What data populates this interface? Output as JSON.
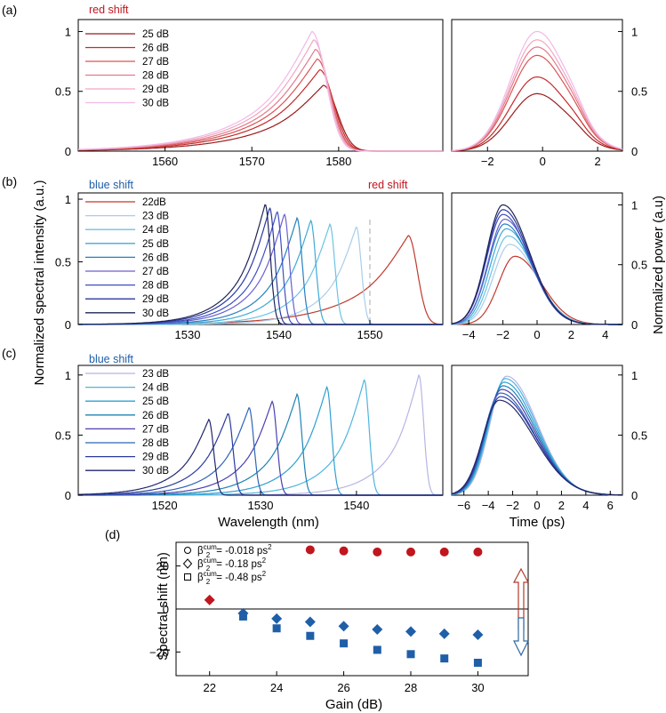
{
  "panels": {
    "a": {
      "label": "(a)",
      "annotation": "red shift",
      "spectrum": {
        "xticks": [
          1560,
          1570,
          1580
        ],
        "yticks": [
          "0",
          "0.5",
          "1"
        ],
        "legend": [
          "25 dB",
          "26 dB",
          "27 dB",
          "28 dB",
          "29 dB",
          "30 dB"
        ],
        "colors": [
          "#9b1c1c",
          "#c42a2a",
          "#d95555",
          "#e27a8c",
          "#f0a8c0",
          "#f2b8e8"
        ],
        "xlim": [
          1550,
          1592
        ],
        "ylim": [
          0,
          1.1
        ]
      },
      "time": {
        "xticks": [
          -2,
          0,
          2
        ],
        "yticks": [
          "0",
          "0.5",
          "1"
        ],
        "xlim": [
          -3.3,
          2.9
        ],
        "ylim": [
          0,
          1.1
        ]
      }
    },
    "b": {
      "label": "(b)",
      "annotation_left": "blue shift",
      "annotation_right": "red shift",
      "spectrum": {
        "xticks": [
          1530,
          1540,
          1550
        ],
        "yticks": [
          "0",
          "0.5",
          "1"
        ],
        "legend": [
          "22dB",
          "23 dB",
          "24 dB",
          "25 dB",
          "26 dB",
          "27 dB",
          "28 dB",
          "29 dB",
          "30 dB"
        ],
        "colors": [
          "#c0392b",
          "#a9cdea",
          "#6cc3e2",
          "#3fa9d8",
          "#2480bf",
          "#6a5fd1",
          "#3f4fbf",
          "#2a3a9e",
          "#1f2455"
        ],
        "xlim": [
          1518,
          1558
        ],
        "ylim": [
          0,
          1.05
        ],
        "reference_line": 1550
      },
      "time": {
        "xticks": [
          -4,
          -2,
          0,
          2,
          4
        ],
        "yticks": [
          "0",
          "0.5",
          "1"
        ],
        "xlim": [
          -5,
          5
        ],
        "ylim": [
          0,
          1.1
        ]
      }
    },
    "c": {
      "label": "(c)",
      "annotation": "blue shift",
      "spectrum": {
        "xticks": [
          1520,
          1530,
          1540
        ],
        "yticks": [
          "0",
          "0.5",
          "1"
        ],
        "legend": [
          "23 dB",
          "24 dB",
          "25 dB",
          "26 dB",
          "27 dB",
          "28 dB",
          "29 dB",
          "30 dB"
        ],
        "colors": [
          "#b5b5e6",
          "#4fb4e0",
          "#2f9fd1",
          "#1d82b4",
          "#4a3fb0",
          "#2f63b8",
          "#2a3a9e",
          "#22266a"
        ],
        "xlim": [
          1511,
          1549
        ],
        "ylim": [
          0,
          1.08
        ]
      },
      "time": {
        "xticks": [
          -6,
          -4,
          -2,
          0,
          2,
          4,
          6
        ],
        "yticks": [
          "0",
          "0.5",
          "1"
        ],
        "xlim": [
          -7,
          7
        ],
        "ylim": [
          0,
          1.08
        ]
      }
    },
    "d": {
      "label": "(d)",
      "xlabel": "Gain (dB)",
      "ylabel": "Spectral shift (nm)",
      "xticks": [
        22,
        24,
        26,
        28,
        30
      ],
      "yticks": [
        -20,
        0,
        20
      ],
      "xlim": [
        21,
        31.5
      ],
      "ylim": [
        -31,
        31
      ],
      "legend": [
        {
          "marker": "circle",
          "beta": "β",
          "sub": "2",
          "sup": "cum",
          "text": "= -0.018  ps",
          "unit_sup": "2"
        },
        {
          "marker": "diamond",
          "beta": "β",
          "sub": "2",
          "sup": "cum",
          "text": "= -0.18  ps",
          "unit_sup": "2"
        },
        {
          "marker": "square",
          "beta": "β",
          "sub": "2",
          "sup": "cum",
          "text": "= -0.48  ps",
          "unit_sup": "2"
        }
      ]
    }
  },
  "shared_labels": {
    "spectrum_xlabel": "Wavelength (nm)",
    "spectrum_ylabel": "Normalized spectral intensity (a.u.)",
    "time_xlabel": "Time (ps)",
    "time_ylabel": "Normalized power (a.u)"
  },
  "colors": {
    "red": "#c0161d",
    "blue": "#1f5fa8",
    "arrow_red": "#b23a2c",
    "arrow_blue": "#2b6aa8"
  },
  "chart_data": [
    {
      "type": "line",
      "panel": "a-spectrum",
      "xlabel": "Wavelength (nm)",
      "series": [
        {
          "name": "25 dB",
          "peak_x": 1578.2,
          "peak_y": 0.55
        },
        {
          "name": "26 dB",
          "peak_x": 1577.8,
          "peak_y": 0.68
        },
        {
          "name": "27 dB",
          "peak_x": 1577.5,
          "peak_y": 0.77
        },
        {
          "name": "28 dB",
          "peak_x": 1577.3,
          "peak_y": 0.85
        },
        {
          "name": "29 dB",
          "peak_x": 1577.1,
          "peak_y": 0.93
        },
        {
          "name": "30 dB",
          "peak_x": 1576.9,
          "peak_y": 1.0
        }
      ]
    },
    {
      "type": "line",
      "panel": "a-time",
      "series": [
        {
          "name": "25 dB",
          "peak_x": -0.2,
          "peak_y": 0.48
        },
        {
          "name": "26 dB",
          "peak_x": -0.2,
          "peak_y": 0.62
        },
        {
          "name": "27 dB",
          "peak_x": -0.2,
          "peak_y": 0.8
        },
        {
          "name": "28 dB",
          "peak_x": -0.2,
          "peak_y": 0.87
        },
        {
          "name": "29 dB",
          "peak_x": -0.2,
          "peak_y": 0.93
        },
        {
          "name": "30 dB",
          "peak_x": -0.2,
          "peak_y": 1.0
        }
      ]
    },
    {
      "type": "line",
      "panel": "b-spectrum",
      "xlabel": "Wavelength (nm)",
      "series": [
        {
          "name": "22dB",
          "peak_x": 1554.2,
          "peak_y": 0.71
        },
        {
          "name": "23 dB",
          "peak_x": 1548.5,
          "peak_y": 0.78
        },
        {
          "name": "24 dB",
          "peak_x": 1545.6,
          "peak_y": 0.8
        },
        {
          "name": "25 dB",
          "peak_x": 1543.5,
          "peak_y": 0.83
        },
        {
          "name": "26 dB",
          "peak_x": 1542.0,
          "peak_y": 0.85
        },
        {
          "name": "27 dB",
          "peak_x": 1540.6,
          "peak_y": 0.88
        },
        {
          "name": "28 dB",
          "peak_x": 1539.8,
          "peak_y": 0.9
        },
        {
          "name": "29 dB",
          "peak_x": 1539.0,
          "peak_y": 0.93
        },
        {
          "name": "30 dB",
          "peak_x": 1538.5,
          "peak_y": 0.96
        }
      ]
    },
    {
      "type": "line",
      "panel": "b-time",
      "xlabel": "Time (ps)",
      "series": [
        {
          "name": "22dB",
          "peak_x": -1.3,
          "peak_y": 0.57
        },
        {
          "name": "23 dB",
          "peak_x": -1.6,
          "peak_y": 0.67
        },
        {
          "name": "24 dB",
          "peak_x": -1.7,
          "peak_y": 0.74
        },
        {
          "name": "25 dB",
          "peak_x": -1.8,
          "peak_y": 0.8
        },
        {
          "name": "26 dB",
          "peak_x": -1.9,
          "peak_y": 0.84
        },
        {
          "name": "27 dB",
          "peak_x": -1.9,
          "peak_y": 0.88
        },
        {
          "name": "28 dB",
          "peak_x": -2.0,
          "peak_y": 0.92
        },
        {
          "name": "29 dB",
          "peak_x": -2.0,
          "peak_y": 0.96
        },
        {
          "name": "30 dB",
          "peak_x": -2.0,
          "peak_y": 1.0
        }
      ]
    },
    {
      "type": "line",
      "panel": "c-spectrum",
      "xlabel": "Wavelength (nm)",
      "series": [
        {
          "name": "23 dB",
          "peak_x": 1546.5,
          "peak_y": 1.0
        },
        {
          "name": "24 dB",
          "peak_x": 1540.8,
          "peak_y": 0.96
        },
        {
          "name": "25 dB",
          "peak_x": 1536.9,
          "peak_y": 0.9
        },
        {
          "name": "26 dB",
          "peak_x": 1533.8,
          "peak_y": 0.84
        },
        {
          "name": "27 dB",
          "peak_x": 1531.2,
          "peak_y": 0.78
        },
        {
          "name": "28 dB",
          "peak_x": 1528.8,
          "peak_y": 0.73
        },
        {
          "name": "29 dB",
          "peak_x": 1526.6,
          "peak_y": 0.68
        },
        {
          "name": "30 dB",
          "peak_x": 1524.6,
          "peak_y": 0.63
        }
      ]
    },
    {
      "type": "line",
      "panel": "c-time",
      "xlabel": "Time (ps)",
      "series": [
        {
          "name": "23 dB",
          "peak_x": -2.5,
          "peak_y": 0.99
        },
        {
          "name": "24 dB",
          "peak_x": -2.6,
          "peak_y": 0.97
        },
        {
          "name": "25 dB",
          "peak_x": -2.7,
          "peak_y": 0.94
        },
        {
          "name": "26 dB",
          "peak_x": -2.8,
          "peak_y": 0.91
        },
        {
          "name": "27 dB",
          "peak_x": -2.9,
          "peak_y": 0.88
        },
        {
          "name": "28 dB",
          "peak_x": -3.0,
          "peak_y": 0.85
        },
        {
          "name": "29 dB",
          "peak_x": -3.0,
          "peak_y": 0.82
        },
        {
          "name": "30 dB",
          "peak_x": -3.1,
          "peak_y": 0.79
        }
      ]
    },
    {
      "type": "scatter",
      "panel": "d",
      "xlabel": "Gain (dB)",
      "ylabel": "Spectral shift (nm)",
      "series": [
        {
          "name": "β2cum = -0.018 ps2",
          "marker": "circle",
          "x": [
            25,
            26,
            27,
            28,
            29,
            30
          ],
          "y": [
            27.5,
            27,
            26.5,
            26.5,
            26.5,
            26.5
          ],
          "color": "#c0161d"
        },
        {
          "name": "β2cum = -0.18 ps2",
          "marker": "diamond",
          "x": [
            22,
            23,
            24,
            25,
            26,
            27,
            28,
            29,
            30
          ],
          "y": [
            4.2,
            -2,
            -4.5,
            -6,
            -8,
            -9.5,
            -10.5,
            -11.5,
            -12
          ],
          "colors": [
            "#c0161d",
            "#1f5fa8",
            "#1f5fa8",
            "#1f5fa8",
            "#1f5fa8",
            "#1f5fa8",
            "#1f5fa8",
            "#1f5fa8",
            "#1f5fa8"
          ]
        },
        {
          "name": "β2cum = -0.48 ps2",
          "marker": "square",
          "x": [
            23,
            24,
            25,
            26,
            27,
            28,
            29,
            30
          ],
          "y": [
            -3.5,
            -9,
            -12.5,
            -16,
            -19,
            -21,
            -23,
            -25
          ],
          "color": "#1f5fa8"
        }
      ]
    }
  ]
}
